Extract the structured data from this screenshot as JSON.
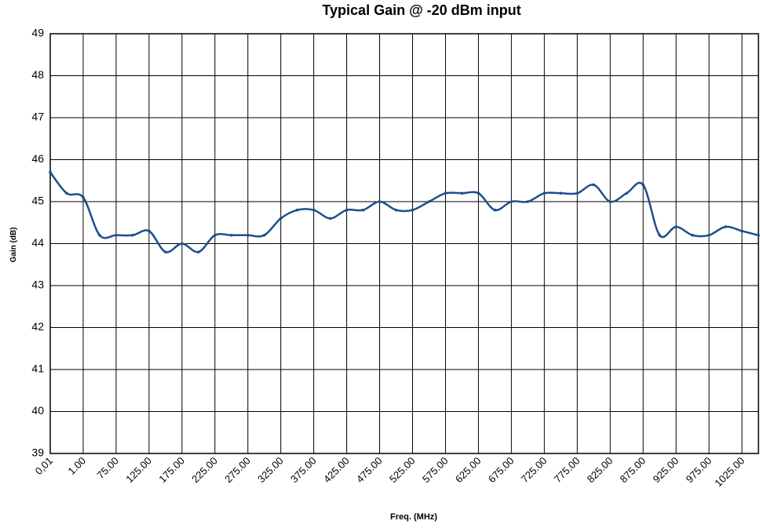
{
  "chart_data": {
    "type": "line",
    "title": "Typical Gain @ -20 dBm input",
    "x_label": "Freq. (MHz)",
    "y_label": "Gain (dB)",
    "categories": [
      "0,01",
      null,
      "1.00",
      null,
      "75.00",
      null,
      "125.00",
      null,
      "175.00",
      null,
      "225.00",
      null,
      "275.00",
      null,
      "325.00",
      null,
      "375.00",
      null,
      "425.00",
      null,
      "475.00",
      null,
      "525.00",
      null,
      "575.00",
      null,
      "625.00",
      null,
      "675.00",
      null,
      "725.00",
      null,
      "775.00",
      null,
      "825.00",
      null,
      "875.00",
      null,
      "925.00",
      null,
      "975.00",
      null,
      "1025.00",
      null
    ],
    "series": [
      {
        "name": "Gain",
        "color": "#1f4e8c",
        "values": [
          45.7,
          45.2,
          45.1,
          44.2,
          44.2,
          44.2,
          44.3,
          43.8,
          44.0,
          43.8,
          44.2,
          44.2,
          44.2,
          44.2,
          44.6,
          44.8,
          44.8,
          44.6,
          44.8,
          44.8,
          45.0,
          44.8,
          44.8,
          45.0,
          45.2,
          45.2,
          45.2,
          44.8,
          45.0,
          45.0,
          45.2,
          45.2,
          45.2,
          45.4,
          45.0,
          45.2,
          45.4,
          44.2,
          44.4,
          44.2,
          44.2,
          44.4,
          44.3,
          44.2
        ]
      }
    ],
    "ylim": [
      39,
      49
    ],
    "yticks": [
      39,
      40,
      41,
      42,
      43,
      44,
      45,
      46,
      47,
      48,
      49
    ],
    "grid": true
  }
}
